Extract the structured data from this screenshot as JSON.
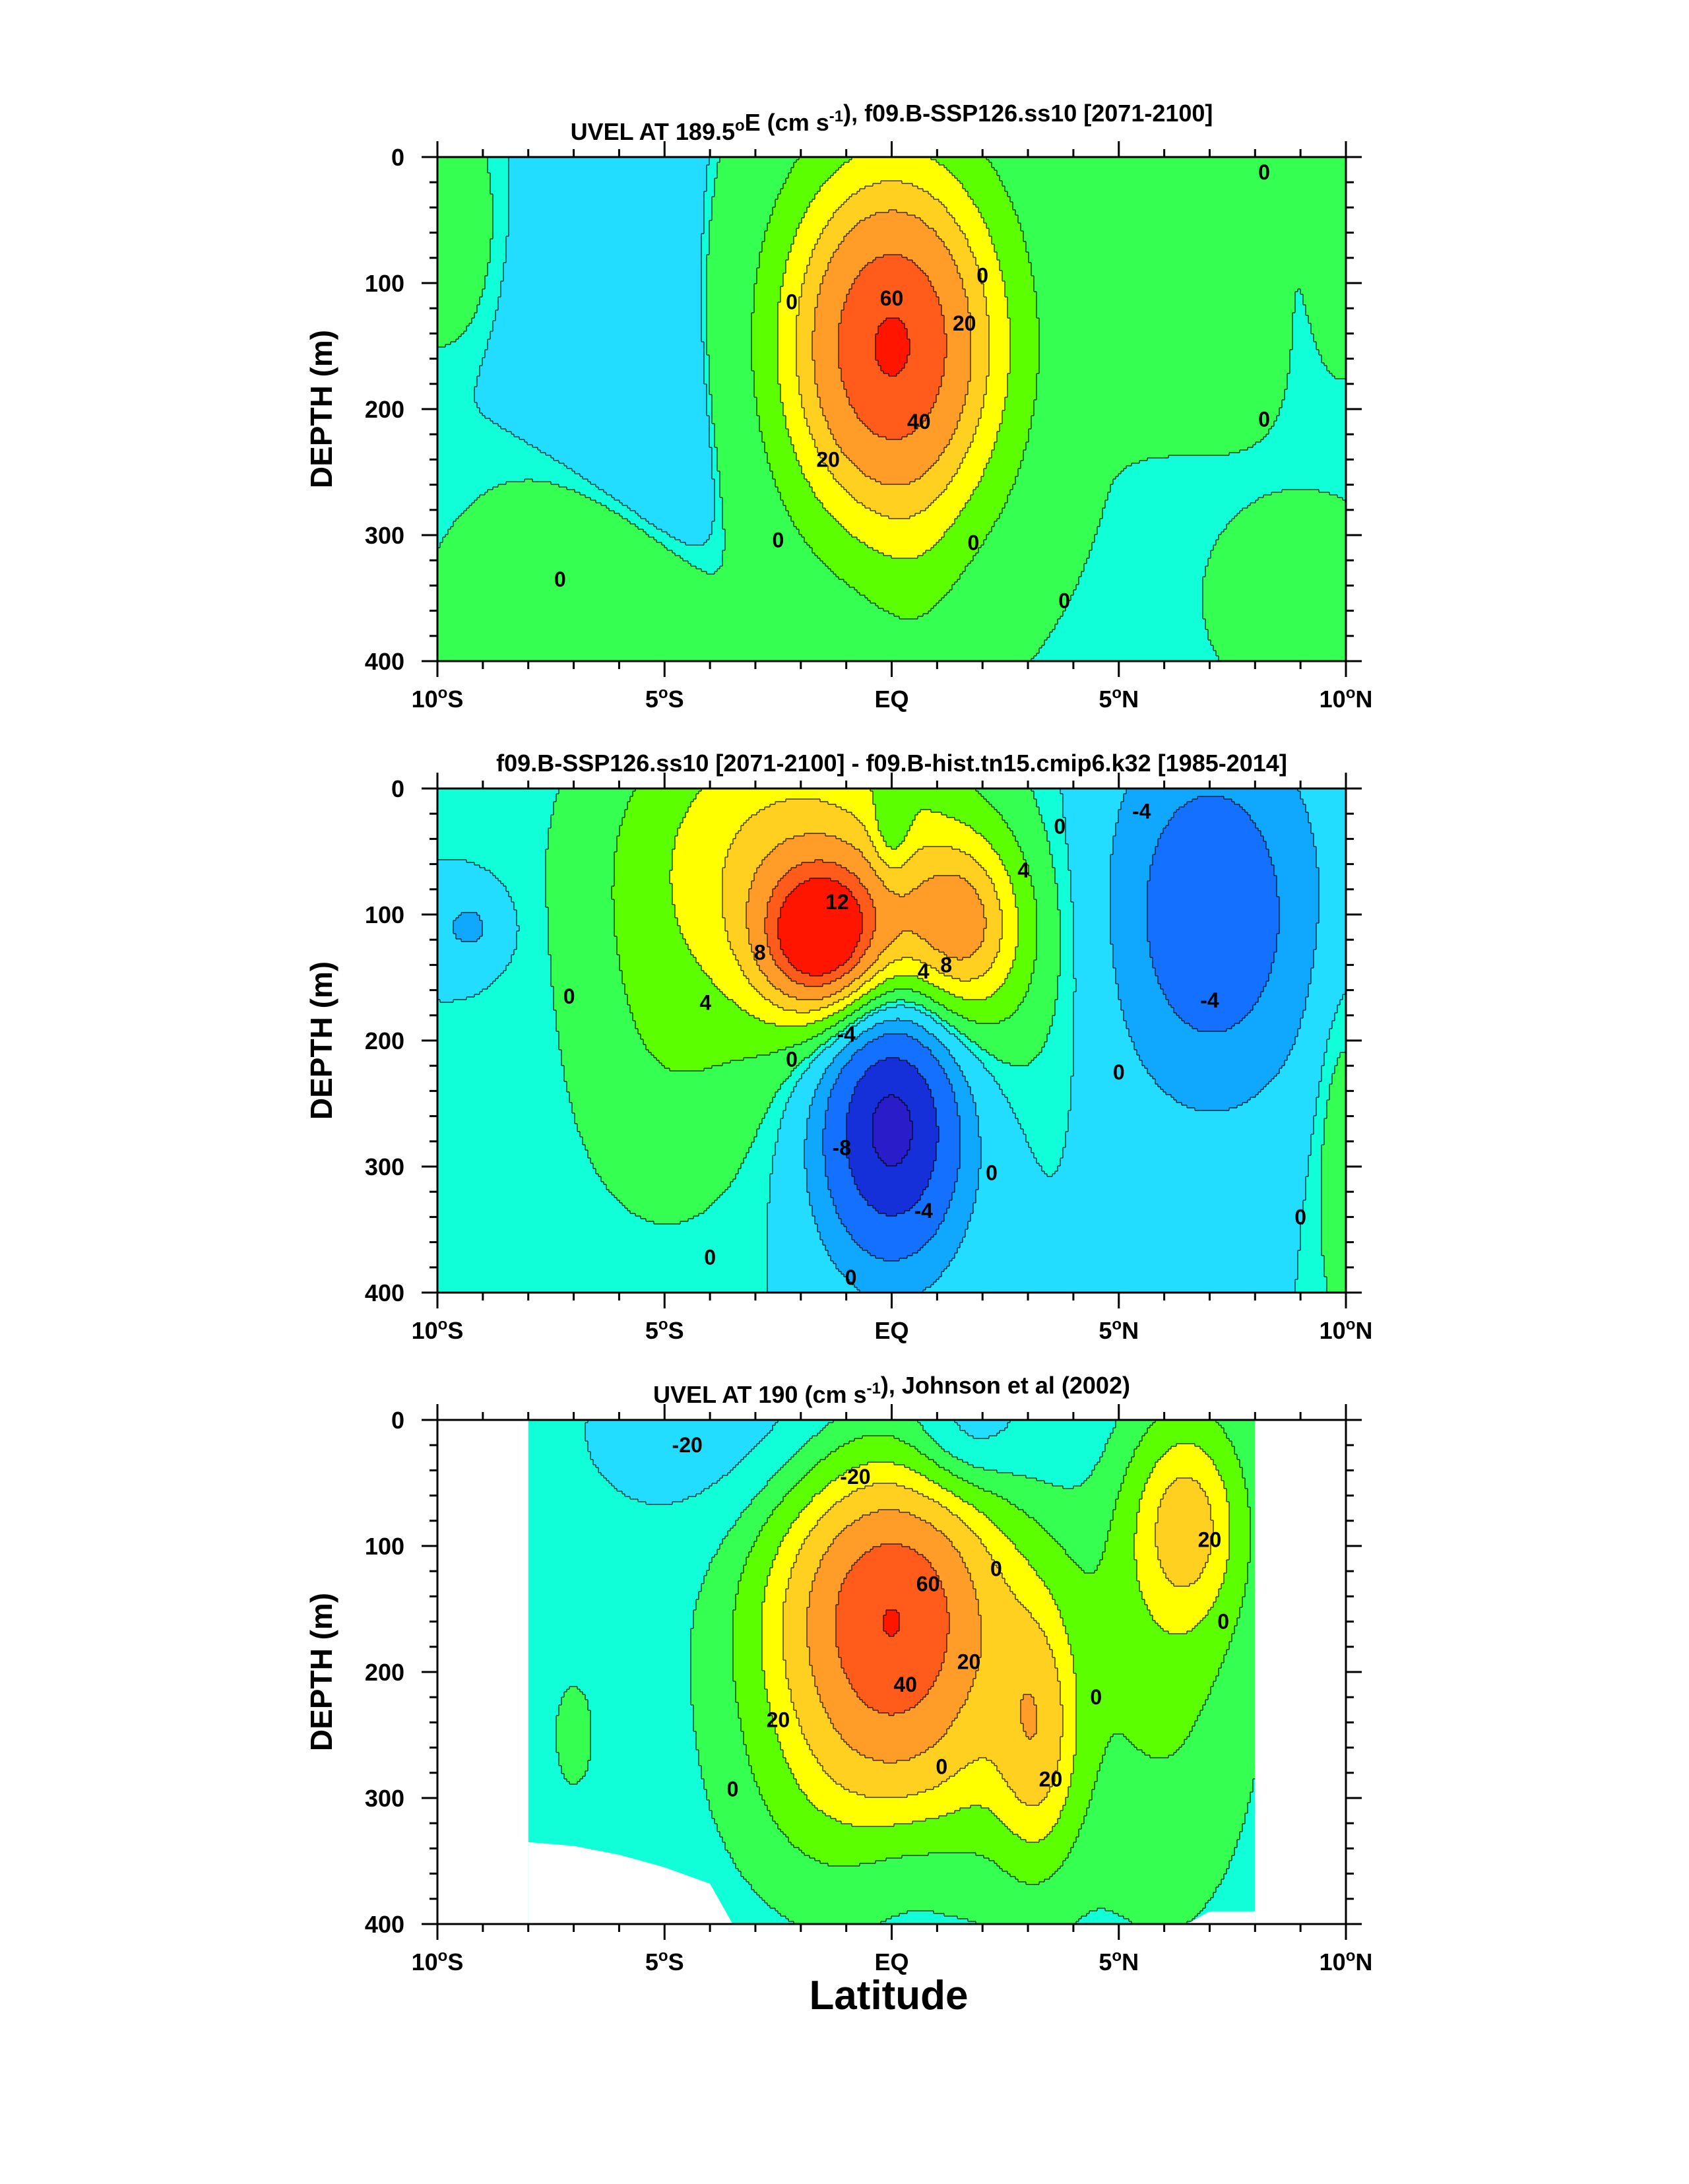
{
  "figure": {
    "xlabel": "Latitude"
  },
  "colors": {
    "lev_n28": "#7a00d8",
    "lev_n24": "#2a1cc8",
    "lev_n20": "#1530d8",
    "lev_n12": "#1470ff",
    "lev_n8": "#10a8ff",
    "lev_n4": "#22ddff",
    "lev_0": "#10ffd8",
    "lev_p4": "#35ff50",
    "lev_p8": "#5bff00",
    "lev_p12": "#ffff00",
    "lev_p16": "#ffd020",
    "lev_p20": "#ff9d28",
    "lev_p24": "#ff5b1a",
    "lev_p28": "#ff1500",
    "missing": "#ffffff"
  },
  "chart_data": [
    {
      "type": "contour",
      "title_main": "UVEL AT 189.5",
      "title_deg": "o",
      "title_mid": "E (cm s",
      "title_exp": "-1",
      "title_end": "), f09.B-SSP126.ss10 [2071-2100]",
      "ylabel": "DEPTH (m)",
      "xlabel": "",
      "xlim": [
        -10,
        10
      ],
      "ylim": [
        400,
        0
      ],
      "x_ticks": [
        -10,
        -5,
        0,
        5,
        10
      ],
      "x_tick_labels": [
        "10",
        "5",
        "EQ",
        "5",
        "10"
      ],
      "x_tick_suffix": [
        "S",
        "S",
        "",
        "N",
        "N"
      ],
      "y_ticks": [
        0,
        100,
        200,
        300,
        400
      ],
      "y_tick_labels": [
        "0",
        "100",
        "200",
        "300",
        "400"
      ],
      "base_level": "lev_0",
      "features": [
        {
          "cx": 0.0,
          "cy": 150,
          "rx": 2.3,
          "ry": 140,
          "amp": 72,
          "p": 2
        },
        {
          "cx": 6.2,
          "cy": 80,
          "rx": 2.0,
          "ry": 120,
          "amp": 9,
          "p": 4
        },
        {
          "cx": 9.9,
          "cy": 40,
          "rx": 0.6,
          "ry": 90,
          "amp": 5,
          "p": 2
        },
        {
          "cx": -9.9,
          "cy": 50,
          "rx": 0.8,
          "ry": 70,
          "amp": 4,
          "p": 2
        },
        {
          "cx": -6.5,
          "cy": 400,
          "rx": 2.5,
          "ry": 110,
          "amp": 7,
          "p": 2
        },
        {
          "cx": 0.5,
          "cy": 340,
          "rx": 1.0,
          "ry": 90,
          "amp": 4,
          "p": 2
        },
        {
          "cx": 9.0,
          "cy": 350,
          "rx": 1.5,
          "ry": 60,
          "amp": 4,
          "p": 2
        },
        {
          "cx": -4.5,
          "cy": 200,
          "rx": 2.5,
          "ry": 200,
          "amp": -3,
          "p": 2
        }
      ],
      "levels": [
        {
          "value": -8,
          "color": "lev_n8"
        },
        {
          "value": -4,
          "color": "lev_n4"
        },
        {
          "value": 0,
          "color": "lev_0"
        },
        {
          "value": 0.5,
          "color": "lev_p4"
        },
        {
          "value": 10,
          "color": "lev_p8"
        },
        {
          "value": 20,
          "color": "lev_p12"
        },
        {
          "value": 30,
          "color": "lev_p16"
        },
        {
          "value": 40,
          "color": "lev_p20"
        },
        {
          "value": 55,
          "color": "lev_p24"
        },
        {
          "value": 70,
          "color": "lev_p28"
        }
      ],
      "contour_labels": [
        {
          "text": "0",
          "x": 8.2,
          "y": 12
        },
        {
          "text": "0",
          "x": 2.0,
          "y": 94
        },
        {
          "text": "0",
          "x": -2.2,
          "y": 115
        },
        {
          "text": "60",
          "x": 0.0,
          "y": 112
        },
        {
          "text": "20",
          "x": 1.6,
          "y": 132
        },
        {
          "text": "0",
          "x": 8.2,
          "y": 208
        },
        {
          "text": "40",
          "x": 0.6,
          "y": 210
        },
        {
          "text": "20",
          "x": -1.4,
          "y": 240
        },
        {
          "text": "0",
          "x": -2.5,
          "y": 304
        },
        {
          "text": "0",
          "x": 1.8,
          "y": 306
        },
        {
          "text": "0",
          "x": -7.3,
          "y": 335
        },
        {
          "text": "0",
          "x": 3.8,
          "y": 352
        }
      ]
    },
    {
      "type": "contour",
      "title_main": "f09.B-SSP126.ss10 [2071-2100] - f09.B-hist.tn15.cmip6.k32 [1985-2014]",
      "title_deg": "",
      "title_mid": "",
      "title_exp": "",
      "title_end": "",
      "ylabel": "DEPTH (m)",
      "xlabel": "",
      "xlim": [
        -10,
        10
      ],
      "ylim": [
        400,
        0
      ],
      "x_ticks": [
        -10,
        -5,
        0,
        5,
        10
      ],
      "x_tick_labels": [
        "10",
        "5",
        "EQ",
        "5",
        "10"
      ],
      "x_tick_suffix": [
        "S",
        "S",
        "",
        "N",
        "N"
      ],
      "y_ticks": [
        0,
        100,
        200,
        300,
        400
      ],
      "y_tick_labels": [
        "0",
        "100",
        "200",
        "300",
        "400"
      ],
      "base_level": "lev_0",
      "features": [
        {
          "cx": -1.5,
          "cy": 120,
          "rx": 1.4,
          "ry": 60,
          "amp": 12,
          "p": 2
        },
        {
          "cx": 1.5,
          "cy": 110,
          "rx": 1.3,
          "ry": 70,
          "amp": 7,
          "p": 2
        },
        {
          "cx": -2.3,
          "cy": 40,
          "rx": 3.5,
          "ry": 120,
          "amp": 6,
          "p": 2
        },
        {
          "cx": 0.3,
          "cy": 140,
          "rx": 3.5,
          "ry": 120,
          "amp": 3,
          "p": 2
        },
        {
          "cx": 0.0,
          "cy": 260,
          "rx": 1.6,
          "ry": 110,
          "amp": -12,
          "p": 2
        },
        {
          "cx": 7.0,
          "cy": 100,
          "rx": 2.4,
          "ry": 150,
          "amp": -6,
          "p": 2
        },
        {
          "cx": -9.3,
          "cy": 110,
          "rx": 0.8,
          "ry": 30,
          "amp": -2.5,
          "p": 2
        },
        {
          "cx": -5.0,
          "cy": 200,
          "rx": 2.2,
          "ry": 150,
          "amp": 2,
          "p": 2
        },
        {
          "cx": 9.9,
          "cy": 280,
          "rx": 0.6,
          "ry": 150,
          "amp": 2,
          "p": 2
        },
        {
          "cx": 0.0,
          "cy": 30,
          "rx": 0.4,
          "ry": 40,
          "amp": -3,
          "p": 2
        }
      ],
      "levels": [
        {
          "value": -14,
          "color": "lev_n28"
        },
        {
          "value": -12,
          "color": "lev_n24"
        },
        {
          "value": -10,
          "color": "lev_n20"
        },
        {
          "value": -7,
          "color": "lev_n12"
        },
        {
          "value": -4,
          "color": "lev_n8"
        },
        {
          "value": -2,
          "color": "lev_n4"
        },
        {
          "value": 0,
          "color": "lev_0"
        },
        {
          "value": 0.8,
          "color": "lev_p4"
        },
        {
          "value": 2.5,
          "color": "lev_p8"
        },
        {
          "value": 4.5,
          "color": "lev_p12"
        },
        {
          "value": 6.5,
          "color": "lev_p16"
        },
        {
          "value": 8.5,
          "color": "lev_p20"
        },
        {
          "value": 11,
          "color": "lev_p24"
        },
        {
          "value": 13,
          "color": "lev_p28"
        }
      ],
      "contour_labels": [
        {
          "text": "-4",
          "x": 5.5,
          "y": 18
        },
        {
          "text": "0",
          "x": 3.7,
          "y": 30
        },
        {
          "text": "4",
          "x": 2.9,
          "y": 65
        },
        {
          "text": "12",
          "x": -1.2,
          "y": 90
        },
        {
          "text": "8",
          "x": -2.9,
          "y": 130
        },
        {
          "text": "4",
          "x": 0.7,
          "y": 145
        },
        {
          "text": "8",
          "x": 1.2,
          "y": 140
        },
        {
          "text": "4",
          "x": -4.1,
          "y": 170
        },
        {
          "text": "0",
          "x": -7.1,
          "y": 165
        },
        {
          "text": "-4",
          "x": 7.0,
          "y": 168
        },
        {
          "text": "-4",
          "x": -1.0,
          "y": 195
        },
        {
          "text": "0",
          "x": -2.2,
          "y": 215
        },
        {
          "text": "0",
          "x": 5.0,
          "y": 225
        },
        {
          "text": "-8",
          "x": -1.1,
          "y": 285
        },
        {
          "text": "0",
          "x": 2.2,
          "y": 305
        },
        {
          "text": "-4",
          "x": 0.7,
          "y": 335
        },
        {
          "text": "0",
          "x": 9.0,
          "y": 340
        },
        {
          "text": "0",
          "x": -4.0,
          "y": 372
        },
        {
          "text": "0",
          "x": -0.9,
          "y": 388
        }
      ]
    },
    {
      "type": "contour",
      "title_main": "UVEL AT 190 (cm s",
      "title_deg": "",
      "title_mid": "",
      "title_exp": "-1",
      "title_end": "), Johnson et al (2002)",
      "ylabel": "DEPTH (m)",
      "xlabel": "Latitude",
      "xlim": [
        -10,
        10
      ],
      "ylim": [
        400,
        0
      ],
      "x_ticks": [
        -10,
        -5,
        0,
        5,
        10
      ],
      "x_tick_labels": [
        "10",
        "5",
        "EQ",
        "5",
        "10"
      ],
      "x_tick_suffix": [
        "S",
        "S",
        "",
        "N",
        "N"
      ],
      "y_ticks": [
        0,
        100,
        200,
        300,
        400
      ],
      "y_tick_labels": [
        "0",
        "100",
        "200",
        "300",
        "400"
      ],
      "base_level": "lev_0",
      "data_x_range": [
        -8,
        8
      ],
      "bottom_mask": [
        [
          -8,
          335
        ],
        [
          -7,
          338
        ],
        [
          -6,
          345
        ],
        [
          -5,
          355
        ],
        [
          -4,
          368
        ],
        [
          -3.5,
          400
        ]
      ],
      "bottom_mask_right": [
        [
          6.5,
          400
        ],
        [
          7.0,
          390
        ],
        [
          8,
          390
        ]
      ],
      "features": [
        {
          "cx": 0.0,
          "cy": 150,
          "rx": 2.6,
          "ry": 140,
          "amp": 75,
          "p": 2
        },
        {
          "cx": 0.0,
          "cy": 300,
          "rx": 3.0,
          "ry": 100,
          "amp": 12,
          "p": 2
        },
        {
          "cx": 3.2,
          "cy": 250,
          "rx": 0.9,
          "ry": 100,
          "amp": 30,
          "p": 2
        },
        {
          "cx": 6.5,
          "cy": 80,
          "rx": 1.2,
          "ry": 80,
          "amp": 30,
          "p": 2
        },
        {
          "cx": 6.0,
          "cy": 180,
          "rx": 2.0,
          "ry": 200,
          "amp": 14,
          "p": 2
        },
        {
          "cx": -1.0,
          "cy": 10,
          "rx": 5.0,
          "ry": 90,
          "amp": -15,
          "p": 2
        },
        {
          "cx": 1.5,
          "cy": 20,
          "rx": 1.2,
          "ry": 50,
          "amp": -12,
          "p": 2
        },
        {
          "cx": -7.0,
          "cy": 250,
          "rx": 0.6,
          "ry": 60,
          "amp": 6,
          "p": 2
        },
        {
          "cx": 0.3,
          "cy": 350,
          "rx": 1.5,
          "ry": 60,
          "amp": -8,
          "p": 2
        }
      ],
      "levels": [
        {
          "value": -24,
          "color": "lev_n12"
        },
        {
          "value": -12,
          "color": "lev_n4"
        },
        {
          "value": -4,
          "color": "lev_0"
        },
        {
          "value": 4,
          "color": "lev_p4"
        },
        {
          "value": 12,
          "color": "lev_p8"
        },
        {
          "value": 22,
          "color": "lev_p12"
        },
        {
          "value": 32,
          "color": "lev_p16"
        },
        {
          "value": 45,
          "color": "lev_p20"
        },
        {
          "value": 60,
          "color": "lev_p24"
        },
        {
          "value": 75,
          "color": "lev_p28"
        }
      ],
      "contour_labels": [
        {
          "text": "-20",
          "x": -4.5,
          "y": 20
        },
        {
          "text": "-20",
          "x": -0.8,
          "y": 45
        },
        {
          "text": "0",
          "x": 2.3,
          "y": 118
        },
        {
          "text": "20",
          "x": 7.0,
          "y": 95
        },
        {
          "text": "60",
          "x": 0.8,
          "y": 130
        },
        {
          "text": "0",
          "x": 7.3,
          "y": 160
        },
        {
          "text": "20",
          "x": 1.7,
          "y": 192
        },
        {
          "text": "40",
          "x": 0.3,
          "y": 210
        },
        {
          "text": "0",
          "x": 4.5,
          "y": 220
        },
        {
          "text": "20",
          "x": -2.5,
          "y": 238
        },
        {
          "text": "20",
          "x": 3.5,
          "y": 285
        },
        {
          "text": "0",
          "x": 1.1,
          "y": 275
        },
        {
          "text": "0",
          "x": -3.5,
          "y": 293
        }
      ]
    }
  ]
}
